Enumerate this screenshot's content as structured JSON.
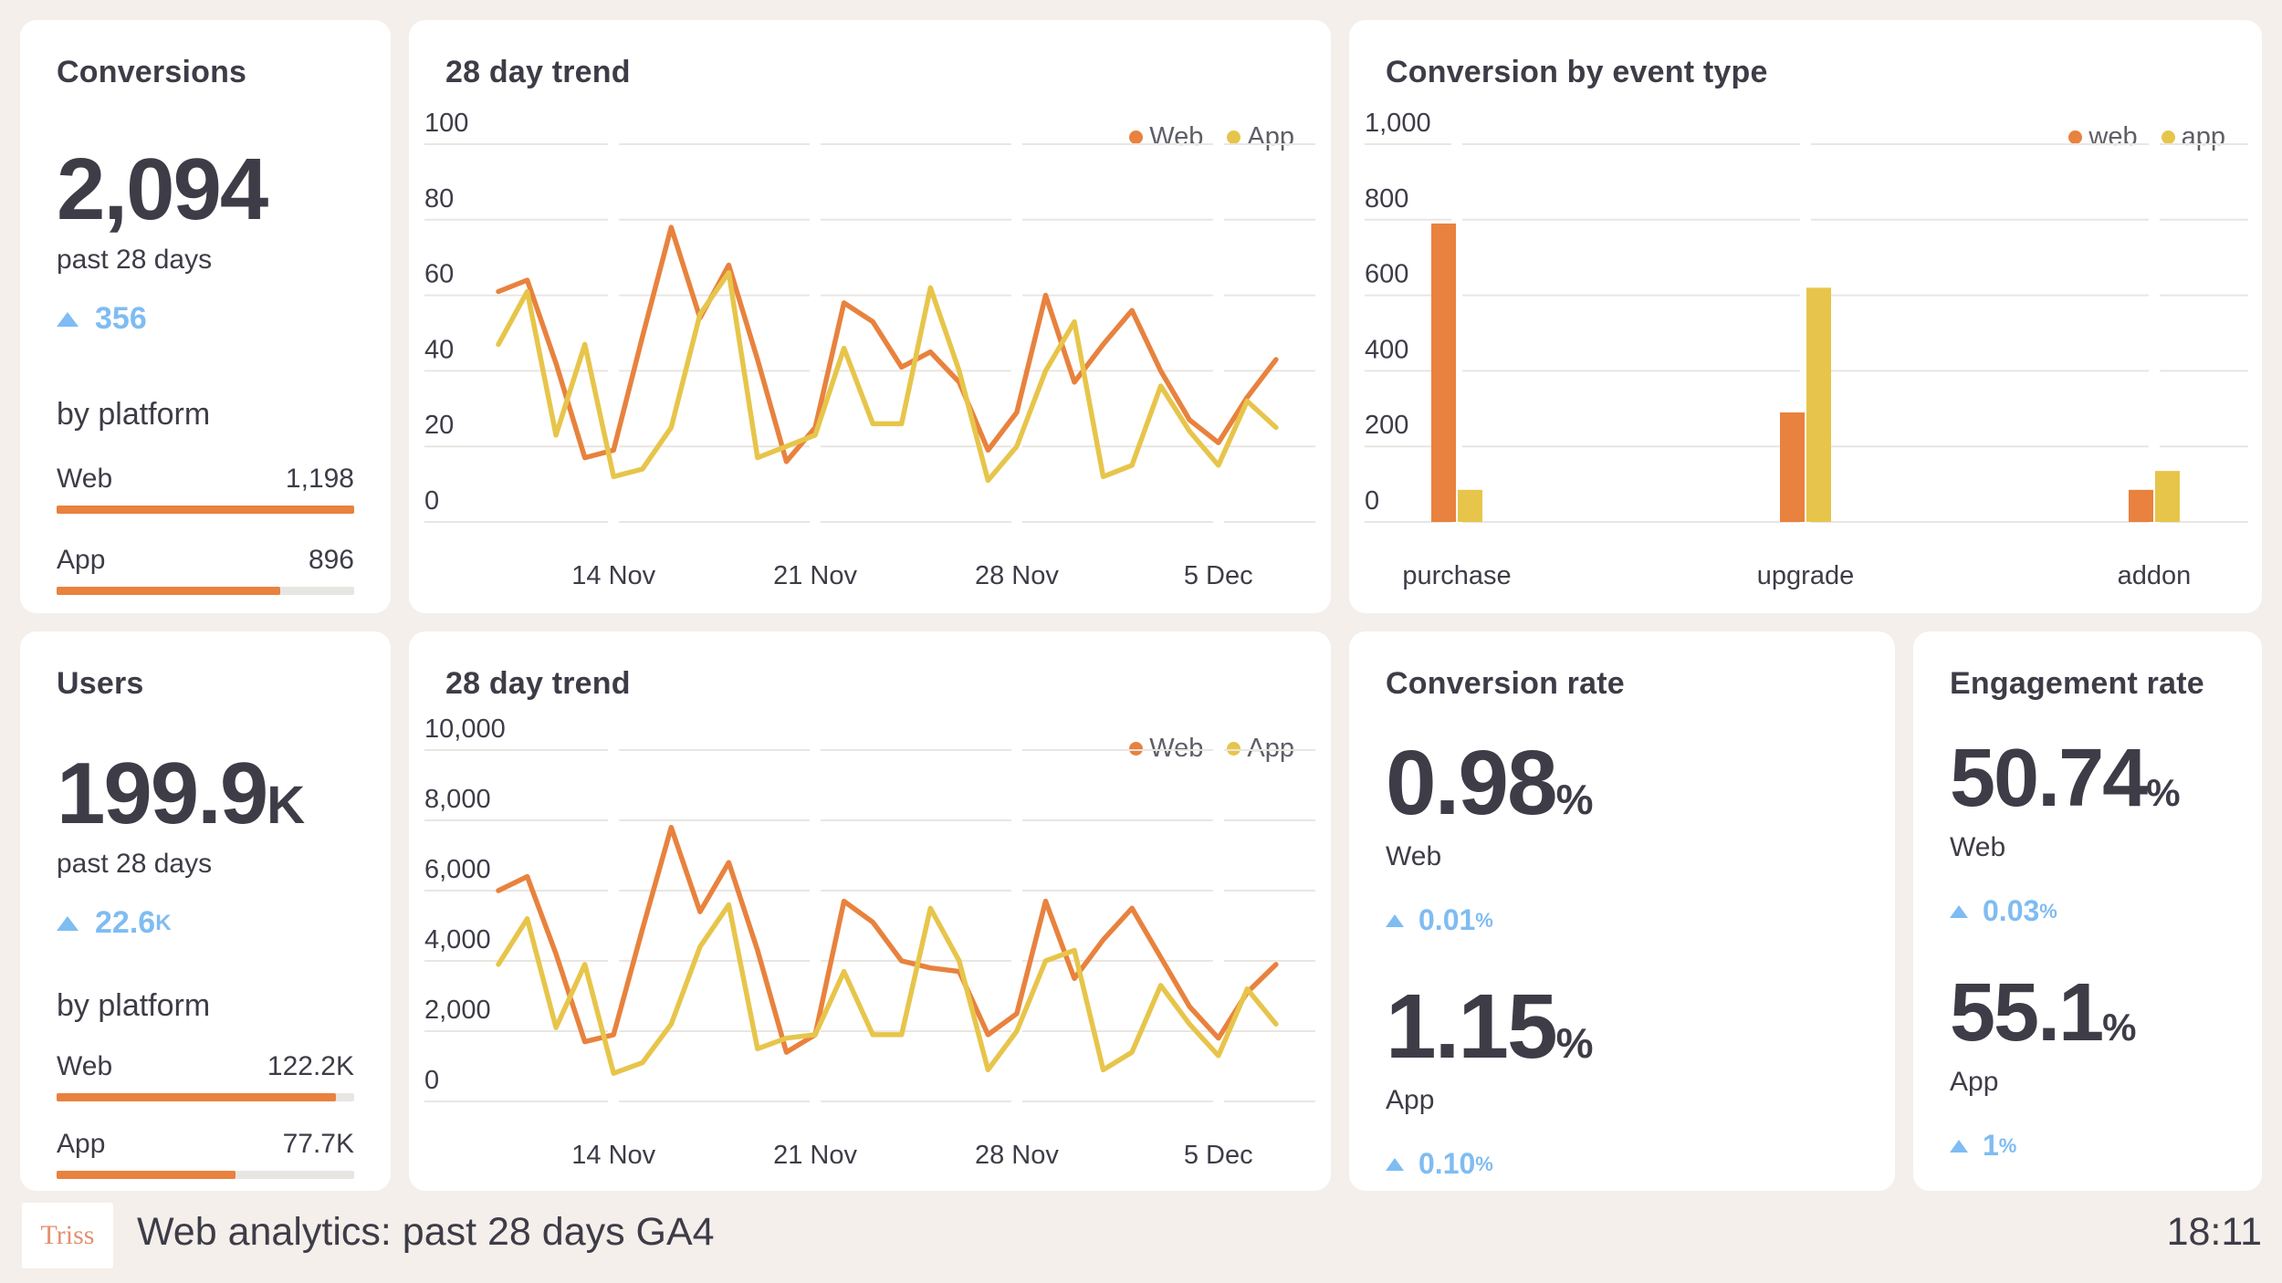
{
  "colors": {
    "background": "#F4EFEB",
    "card": "#FFFFFF",
    "ink": "#3E3C47",
    "muted": "#5F5D66",
    "web": "#E8823E",
    "app": "#E7C54B",
    "positive_blue": "#7FBCF2",
    "gridline": "#E9E6E2",
    "bar_track": "#E8E6E2",
    "logo_text": "#E38F6F"
  },
  "cards": {
    "conversions": {
      "title": "Conversions",
      "value": "2,094",
      "value_suffix": "",
      "period": "past 28 days",
      "delta": "356",
      "delta_suffix": "",
      "by_platform_label": "by platform",
      "platforms": [
        {
          "name": "Web",
          "value": "1,198",
          "pct": 100
        },
        {
          "name": "App",
          "value": "896",
          "pct": 75
        }
      ]
    },
    "users": {
      "title": "Users",
      "value": "199.9",
      "value_suffix": "K",
      "period": "past 28 days",
      "delta": "22.6",
      "delta_suffix": "K",
      "by_platform_label": "by platform",
      "platforms": [
        {
          "name": "Web",
          "value": "122.2K",
          "pct": 94
        },
        {
          "name": "App",
          "value": "77.7K",
          "pct": 60
        }
      ]
    },
    "trend_conversions": {
      "title": "28 day trend"
    },
    "trend_users": {
      "title": "28 day trend"
    },
    "event_type": {
      "title": "Conversion by event type"
    },
    "conversion_rate": {
      "title": "Conversion rate",
      "rows": [
        {
          "value": "0.98",
          "suffix": "%",
          "label": "Web",
          "delta": "0.01",
          "delta_suffix": "%"
        },
        {
          "value": "1.15",
          "suffix": "%",
          "label": "App",
          "delta": "0.10",
          "delta_suffix": "%"
        }
      ]
    },
    "engagement_rate": {
      "title": "Engagement rate",
      "rows": [
        {
          "value": "50.74",
          "suffix": "%",
          "label": "Web",
          "delta": "0.03",
          "delta_suffix": "%"
        },
        {
          "value": "55.1",
          "suffix": "%",
          "label": "App",
          "delta": "1",
          "delta_suffix": "%"
        }
      ]
    }
  },
  "footer": {
    "brand": "Triss",
    "title": "Web analytics: past 28 days GA4",
    "time": "18:11"
  },
  "chart_data": [
    {
      "id": "trend_conversions",
      "type": "line",
      "title": "28 day trend",
      "xlabel": "",
      "ylabel": "",
      "ylim": [
        0,
        100
      ],
      "y_ticks": [
        0,
        20,
        40,
        60,
        80,
        100
      ],
      "y_tick_labels": [
        "0",
        "20",
        "40",
        "60",
        "80",
        "100"
      ],
      "grid": true,
      "legend_position": "top-right",
      "x": [
        "10 Nov",
        "11 Nov",
        "12 Nov",
        "13 Nov",
        "14 Nov",
        "15 Nov",
        "16 Nov",
        "17 Nov",
        "18 Nov",
        "19 Nov",
        "20 Nov",
        "21 Nov",
        "22 Nov",
        "23 Nov",
        "24 Nov",
        "25 Nov",
        "26 Nov",
        "27 Nov",
        "28 Nov",
        "29 Nov",
        "30 Nov",
        "1 Dec",
        "2 Dec",
        "3 Dec",
        "4 Dec",
        "5 Dec",
        "6 Dec",
        "7 Dec"
      ],
      "x_tick_labels": [
        "14 Nov",
        "21 Nov",
        "28 Nov",
        "5 Dec"
      ],
      "x_tick_indices": [
        4,
        11,
        18,
        25
      ],
      "series": [
        {
          "name": "Web",
          "color_key": "web",
          "values": [
            61,
            64,
            42,
            17,
            19,
            49,
            78,
            54,
            68,
            43,
            16,
            25,
            58,
            53,
            41,
            45,
            37,
            19,
            29,
            60,
            37,
            47,
            56,
            40,
            27,
            21,
            33,
            43
          ]
        },
        {
          "name": "App",
          "color_key": "app",
          "values": [
            47,
            61,
            23,
            47,
            12,
            14,
            25,
            55,
            66,
            17,
            20,
            23,
            46,
            26,
            26,
            62,
            40,
            11,
            20,
            40,
            53,
            12,
            15,
            36,
            24,
            15,
            32,
            25
          ]
        }
      ]
    },
    {
      "id": "trend_users",
      "type": "line",
      "title": "28 day trend",
      "xlabel": "",
      "ylabel": "",
      "ylim": [
        0,
        10000
      ],
      "y_ticks": [
        0,
        2000,
        4000,
        6000,
        8000,
        10000
      ],
      "y_tick_labels": [
        "0",
        "2,000",
        "4,000",
        "6,000",
        "8,000",
        "10,000"
      ],
      "grid": true,
      "legend_position": "top-right",
      "x": [
        "10 Nov",
        "11 Nov",
        "12 Nov",
        "13 Nov",
        "14 Nov",
        "15 Nov",
        "16 Nov",
        "17 Nov",
        "18 Nov",
        "19 Nov",
        "20 Nov",
        "21 Nov",
        "22 Nov",
        "23 Nov",
        "24 Nov",
        "25 Nov",
        "26 Nov",
        "27 Nov",
        "28 Nov",
        "29 Nov",
        "30 Nov",
        "1 Dec",
        "2 Dec",
        "3 Dec",
        "4 Dec",
        "5 Dec",
        "6 Dec",
        "7 Dec"
      ],
      "x_tick_labels": [
        "14 Nov",
        "21 Nov",
        "28 Nov",
        "5 Dec"
      ],
      "x_tick_indices": [
        4,
        11,
        18,
        25
      ],
      "series": [
        {
          "name": "Web",
          "color_key": "web",
          "values": [
            6000,
            6400,
            4200,
            1700,
            1900,
            4900,
            7800,
            5400,
            6800,
            4300,
            1400,
            1900,
            5700,
            5100,
            4000,
            3800,
            3700,
            1900,
            2500,
            5700,
            3500,
            4600,
            5500,
            4100,
            2700,
            1800,
            3100,
            3900
          ]
        },
        {
          "name": "App",
          "color_key": "app",
          "values": [
            3900,
            5200,
            2100,
            3900,
            800,
            1100,
            2200,
            4400,
            5600,
            1500,
            1800,
            1900,
            3700,
            1900,
            1900,
            5500,
            4000,
            900,
            2000,
            4000,
            4300,
            900,
            1400,
            3300,
            2200,
            1300,
            3200,
            2200
          ]
        }
      ]
    },
    {
      "id": "event_type",
      "type": "bar",
      "title": "Conversion by event type",
      "xlabel": "",
      "ylabel": "",
      "categories": [
        "purchase",
        "upgrade",
        "addon"
      ],
      "ylim": [
        0,
        1000
      ],
      "y_ticks": [
        0,
        200,
        400,
        600,
        800,
        1000
      ],
      "y_tick_labels": [
        "0",
        "200",
        "400",
        "600",
        "800",
        "1,000"
      ],
      "grid": true,
      "legend_position": "top-right",
      "series": [
        {
          "name": "web",
          "color_key": "web",
          "values": [
            790,
            290,
            85
          ]
        },
        {
          "name": "app",
          "color_key": "app",
          "values": [
            85,
            620,
            135
          ]
        }
      ]
    }
  ]
}
